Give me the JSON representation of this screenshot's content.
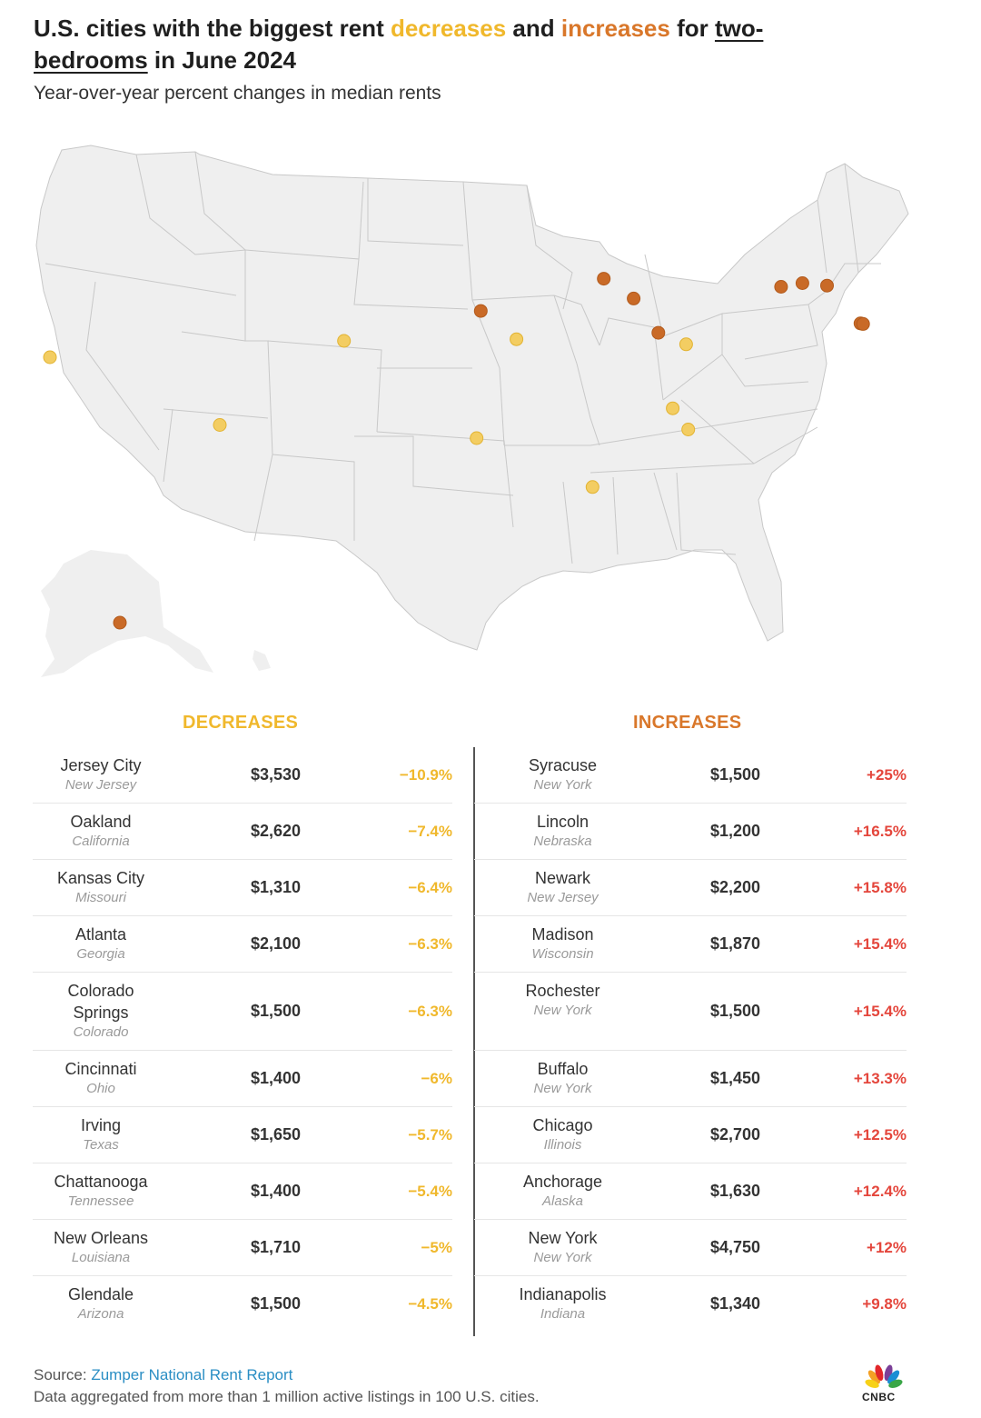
{
  "title": {
    "part1": "U.S. cities with the biggest rent ",
    "decreases_word": "decreases",
    "part2": " and ",
    "increases_word": "increases",
    "part3": " for ",
    "underlined": "two-bedrooms",
    "part4": " in June 2024"
  },
  "subtitle": "Year-over-year percent changes in median rents",
  "colors": {
    "decrease": "#f0b82c",
    "increase": "#d9772a",
    "increase_pct": "#e4463c",
    "land": "#efefef",
    "border": "#c8c8c8"
  },
  "table": {
    "decreases_heading": "DECREASES",
    "increases_heading": "INCREASES",
    "decreases": [
      {
        "city": "Jersey City",
        "state": "New Jersey",
        "rent": "$3,530",
        "change": "−10.9%"
      },
      {
        "city": "Oakland",
        "state": "California",
        "rent": "$2,620",
        "change": "−7.4%"
      },
      {
        "city": "Kansas City",
        "state": "Missouri",
        "rent": "$1,310",
        "change": "−6.4%"
      },
      {
        "city": "Atlanta",
        "state": "Georgia",
        "rent": "$2,100",
        "change": "−6.3%"
      },
      {
        "city": "Colorado Springs",
        "state": "Colorado",
        "rent": "$1,500",
        "change": "−6.3%"
      },
      {
        "city": "Cincinnati",
        "state": "Ohio",
        "rent": "$1,400",
        "change": "−6%"
      },
      {
        "city": "Irving",
        "state": "Texas",
        "rent": "$1,650",
        "change": "−5.7%"
      },
      {
        "city": "Chattanooga",
        "state": "Tennessee",
        "rent": "$1,400",
        "change": "−5.4%"
      },
      {
        "city": "New Orleans",
        "state": "Louisiana",
        "rent": "$1,710",
        "change": "−5%"
      },
      {
        "city": "Glendale",
        "state": "Arizona",
        "rent": "$1,500",
        "change": "−4.5%"
      }
    ],
    "increases": [
      {
        "city": "Syracuse",
        "state": "New York",
        "rent": "$1,500",
        "change": "+25%"
      },
      {
        "city": "Lincoln",
        "state": "Nebraska",
        "rent": "$1,200",
        "change": "+16.5%"
      },
      {
        "city": "Newark",
        "state": "New Jersey",
        "rent": "$2,200",
        "change": "+15.8%"
      },
      {
        "city": "Madison",
        "state": "Wisconsin",
        "rent": "$1,870",
        "change": "+15.4%"
      },
      {
        "city": "Rochester",
        "state": "New York",
        "rent": "$1,500",
        "change": "+15.4%"
      },
      {
        "city": "Buffalo",
        "state": "New York",
        "rent": "$1,450",
        "change": "+13.3%"
      },
      {
        "city": "Chicago",
        "state": "Illinois",
        "rent": "$2,700",
        "change": "+12.5%"
      },
      {
        "city": "Anchorage",
        "state": "Alaska",
        "rent": "$1,630",
        "change": "+12.4%"
      },
      {
        "city": "New York",
        "state": "New York",
        "rent": "$4,750",
        "change": "+12%"
      },
      {
        "city": "Indianapolis",
        "state": "Indiana",
        "rent": "$1,340",
        "change": "+9.8%"
      }
    ]
  },
  "map_markers": [
    {
      "city": "Oakland",
      "type": "decrease",
      "lat": 37.8,
      "lon": -122.27
    },
    {
      "city": "Colorado Springs",
      "type": "decrease",
      "lat": 38.83,
      "lon": -104.82
    },
    {
      "city": "Glendale",
      "type": "decrease",
      "lat": 33.54,
      "lon": -112.19
    },
    {
      "city": "Kansas City",
      "type": "decrease",
      "lat": 39.1,
      "lon": -94.58
    },
    {
      "city": "Irving",
      "type": "decrease",
      "lat": 32.81,
      "lon": -96.95
    },
    {
      "city": "New Orleans",
      "type": "decrease",
      "lat": 29.95,
      "lon": -90.07
    },
    {
      "city": "Cincinnati",
      "type": "decrease",
      "lat": 39.1,
      "lon": -84.51
    },
    {
      "city": "Chattanooga",
      "type": "decrease",
      "lat": 35.05,
      "lon": -85.31
    },
    {
      "city": "Atlanta",
      "type": "decrease",
      "lat": 33.75,
      "lon": -84.39
    },
    {
      "city": "Jersey City",
      "type": "decrease",
      "lat": 40.72,
      "lon": -74.08
    },
    {
      "city": "Lincoln",
      "type": "increase",
      "lat": 40.81,
      "lon": -96.7
    },
    {
      "city": "Madison",
      "type": "increase",
      "lat": 43.07,
      "lon": -89.4
    },
    {
      "city": "Chicago",
      "type": "increase",
      "lat": 41.88,
      "lon": -87.63
    },
    {
      "city": "Indianapolis",
      "type": "increase",
      "lat": 39.77,
      "lon": -86.16
    },
    {
      "city": "Buffalo",
      "type": "increase",
      "lat": 42.89,
      "lon": -78.88
    },
    {
      "city": "Rochester",
      "type": "increase",
      "lat": 43.16,
      "lon": -77.61
    },
    {
      "city": "Syracuse",
      "type": "increase",
      "lat": 43.05,
      "lon": -76.15
    },
    {
      "city": "Newark",
      "type": "increase",
      "lat": 40.74,
      "lon": -74.17
    },
    {
      "city": "New York",
      "type": "increase",
      "lat": 40.71,
      "lon": -74.01
    },
    {
      "city": "Anchorage",
      "type": "increase",
      "lat": 61.22,
      "lon": -149.9
    }
  ],
  "footer": {
    "source_label": "Source: ",
    "source_link": "Zumper National Rent Report",
    "note": "Data aggregated from more than 1 million active listings in 100 U.S. cities.",
    "logo_text": "CNBC"
  }
}
